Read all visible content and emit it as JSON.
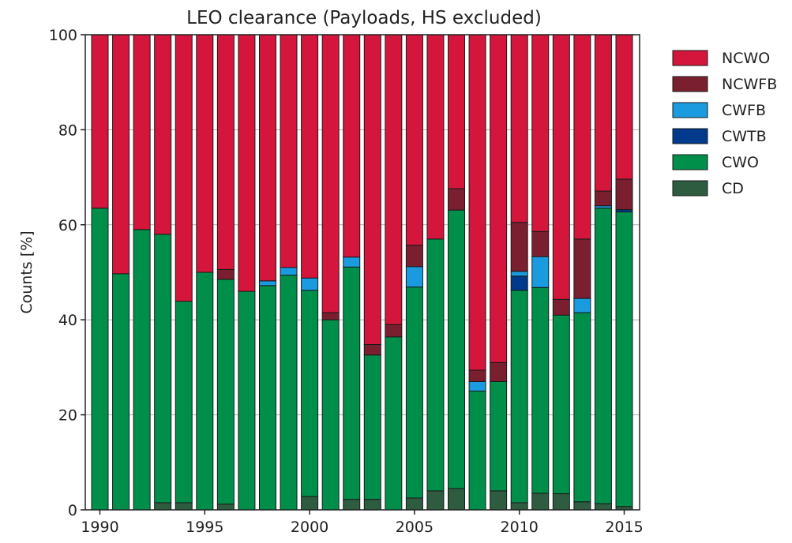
{
  "chart_data": {
    "type": "bar",
    "stacked": true,
    "title": "LEO clearance (Payloads, HS excluded)",
    "xlabel": "",
    "ylabel": "Counts [%]",
    "ylim": [
      0,
      100
    ],
    "yticks": [
      0,
      20,
      40,
      60,
      80,
      100
    ],
    "xticks": [
      1990,
      1995,
      2000,
      2005,
      2010,
      2015
    ],
    "grid": true,
    "legend_position": "right",
    "categories": [
      1990,
      1991,
      1992,
      1993,
      1994,
      1995,
      1996,
      1997,
      1998,
      1999,
      2000,
      2001,
      2002,
      2003,
      2004,
      2005,
      2006,
      2007,
      2008,
      2009,
      2010,
      2011,
      2012,
      2013,
      2014,
      2015
    ],
    "series": [
      {
        "name": "CD",
        "color": "#2d5c40",
        "values": [
          0,
          0,
          0,
          1.5,
          1.5,
          0,
          1.2,
          0,
          0,
          0,
          2.8,
          0,
          2.2,
          2.2,
          0,
          2.5,
          4.0,
          4.5,
          0,
          4.0,
          1.5,
          3.5,
          3.4,
          1.7,
          1.3,
          0.7
        ]
      },
      {
        "name": "CWO",
        "color": "#008f4a",
        "values": [
          63.5,
          49.7,
          59.0,
          56.5,
          42.4,
          50.0,
          47.3,
          46.0,
          47.2,
          49.4,
          43.4,
          40.0,
          48.9,
          30.4,
          36.4,
          44.4,
          53.0,
          58.6,
          25.0,
          23.0,
          44.7,
          43.3,
          37.6,
          39.8,
          62.2,
          62.0
        ]
      },
      {
        "name": "CWTB",
        "color": "#003a8c",
        "values": [
          0,
          0,
          0,
          0,
          0,
          0,
          0,
          0,
          0,
          0,
          0,
          0,
          0,
          0,
          0,
          0,
          0,
          0,
          0,
          0,
          3.0,
          0,
          0,
          0,
          0,
          0.5
        ]
      },
      {
        "name": "CWFB",
        "color": "#1a9be0",
        "values": [
          0,
          0,
          0,
          0,
          0,
          0,
          0,
          0,
          1.0,
          1.6,
          2.6,
          0,
          2.1,
          0,
          0,
          4.3,
          0,
          0,
          2.0,
          0,
          1.0,
          6.5,
          0,
          3.0,
          0.5,
          0
        ]
      },
      {
        "name": "NCWFB",
        "color": "#7a1f30",
        "values": [
          0,
          0,
          0,
          0,
          0,
          0,
          2.1,
          0,
          0,
          0,
          0,
          1.5,
          0,
          2.2,
          2.6,
          4.5,
          0,
          4.5,
          2.4,
          4.0,
          10.3,
          5.3,
          3.3,
          12.5,
          3.1,
          6.4
        ]
      },
      {
        "name": "NCWO",
        "color": "#d4163c",
        "values": [
          36.5,
          50.3,
          41.0,
          42.0,
          56.1,
          50.0,
          49.4,
          54.0,
          51.8,
          49.0,
          51.2,
          58.5,
          46.8,
          65.2,
          61.0,
          44.3,
          43.0,
          32.4,
          70.6,
          69.0,
          39.5,
          41.4,
          55.7,
          43.0,
          32.9,
          30.4
        ]
      }
    ],
    "legend_order": [
      "NCWO",
      "NCWFB",
      "CWFB",
      "CWTB",
      "CWO",
      "CD"
    ]
  }
}
